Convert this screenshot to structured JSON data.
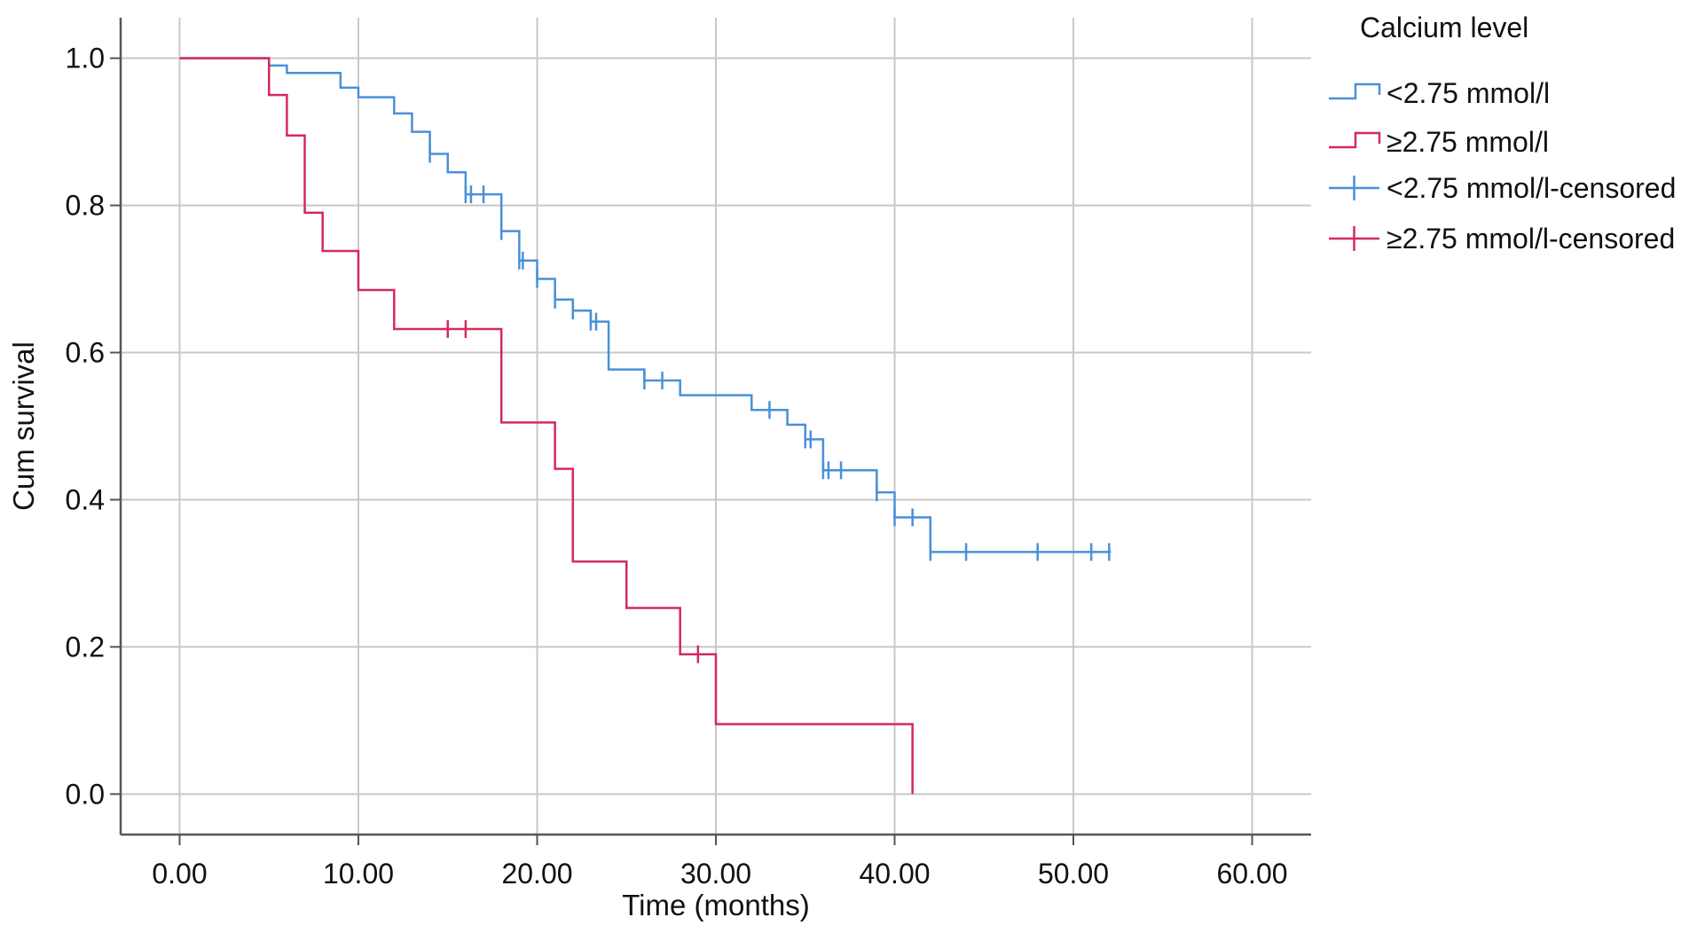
{
  "chart_data": {
    "type": "line",
    "subtype": "kaplan-meier",
    "xlabel": "Time (months)",
    "ylabel": "Cum survival",
    "xlim": [
      -3.3,
      63.3
    ],
    "ylim": [
      -0.055,
      1.055
    ],
    "x_ticks": [
      0,
      10,
      20,
      30,
      40,
      50,
      60
    ],
    "x_tick_labels": [
      "0.00",
      "10.00",
      "20.00",
      "30.00",
      "40.00",
      "50.00",
      "60.00"
    ],
    "y_ticks": [
      0,
      0.2,
      0.4,
      0.6,
      0.8,
      1.0
    ],
    "y_tick_labels": [
      "0.0",
      "0.2",
      "0.4",
      "0.6",
      "0.8",
      "1.0"
    ],
    "grid": true,
    "legend_title": "Calcium level",
    "legend_position": "right",
    "series": [
      {
        "name": "<2.75 mmol/l",
        "censored_name": "<2.75 mmol/l-censored",
        "color": "#4a90d9",
        "steps": [
          [
            0,
            1.0
          ],
          [
            5,
            0.99
          ],
          [
            6,
            0.98
          ],
          [
            9,
            0.96
          ],
          [
            10,
            0.947
          ],
          [
            12,
            0.925
          ],
          [
            13,
            0.9
          ],
          [
            14,
            0.87
          ],
          [
            15,
            0.845
          ],
          [
            16,
            0.815
          ],
          [
            18,
            0.765
          ],
          [
            19,
            0.725
          ],
          [
            20,
            0.7
          ],
          [
            21,
            0.672
          ],
          [
            22,
            0.657
          ],
          [
            23,
            0.642
          ],
          [
            24,
            0.577
          ],
          [
            26,
            0.562
          ],
          [
            28,
            0.542
          ],
          [
            32,
            0.522
          ],
          [
            34,
            0.502
          ],
          [
            35,
            0.482
          ],
          [
            36,
            0.44
          ],
          [
            39,
            0.41
          ],
          [
            40,
            0.376
          ],
          [
            42,
            0.329
          ],
          [
            52.1,
            0.329
          ]
        ],
        "censored": [
          [
            14,
            0.87
          ],
          [
            16,
            0.815
          ],
          [
            16.3,
            0.815
          ],
          [
            17,
            0.815
          ],
          [
            18,
            0.765
          ],
          [
            19,
            0.725
          ],
          [
            19.2,
            0.725
          ],
          [
            20,
            0.7
          ],
          [
            21,
            0.672
          ],
          [
            22,
            0.657
          ],
          [
            23,
            0.642
          ],
          [
            23.3,
            0.642
          ],
          [
            26,
            0.562
          ],
          [
            27,
            0.562
          ],
          [
            33,
            0.522
          ],
          [
            35,
            0.482
          ],
          [
            35.3,
            0.482
          ],
          [
            36,
            0.44
          ],
          [
            36.3,
            0.44
          ],
          [
            37,
            0.44
          ],
          [
            39,
            0.41
          ],
          [
            40,
            0.376
          ],
          [
            41,
            0.376
          ],
          [
            42,
            0.329
          ],
          [
            44,
            0.329
          ],
          [
            48,
            0.329
          ],
          [
            51,
            0.329
          ],
          [
            52,
            0.329
          ]
        ]
      },
      {
        "name": "≥2.75 mmol/l",
        "censored_name": "≥2.75 mmol/l-censored",
        "color": "#d42a5b",
        "steps": [
          [
            0,
            1.0
          ],
          [
            5,
            0.95
          ],
          [
            6,
            0.895
          ],
          [
            7,
            0.79
          ],
          [
            8,
            0.738
          ],
          [
            10,
            0.685
          ],
          [
            12,
            0.632
          ],
          [
            18,
            0.505
          ],
          [
            21,
            0.442
          ],
          [
            22,
            0.316
          ],
          [
            25,
            0.253
          ],
          [
            28,
            0.19
          ],
          [
            30,
            0.095
          ],
          [
            41,
            0.095
          ],
          [
            41,
            0.0
          ]
        ],
        "censored": [
          [
            15,
            0.632
          ],
          [
            16,
            0.632
          ],
          [
            29,
            0.19
          ]
        ]
      }
    ]
  }
}
